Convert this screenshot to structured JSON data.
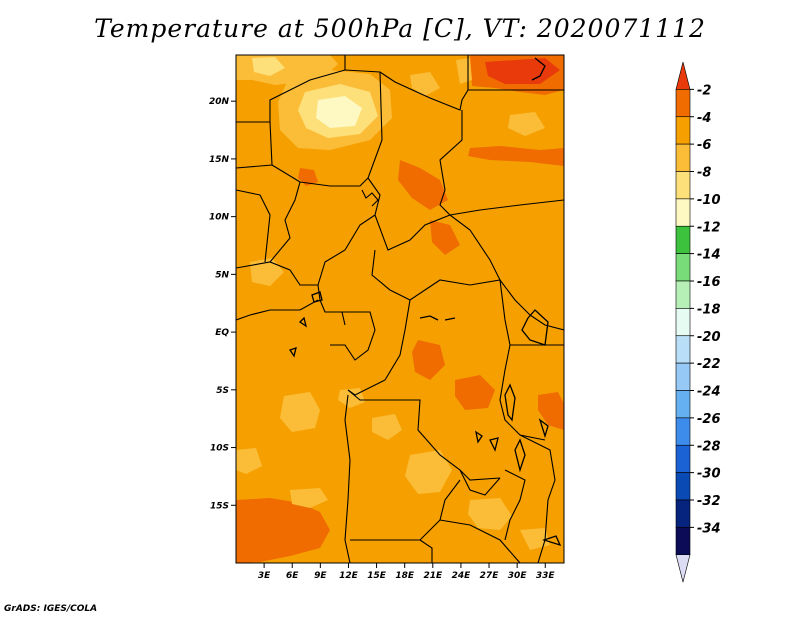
{
  "title": "Temperature at 500hPa [C], VT: 2020071112",
  "credit": "GrADS: IGES/COLA",
  "map": {
    "lon_range": [
      0,
      35
    ],
    "lat_range": [
      -20,
      24
    ],
    "lon_ticks": [
      {
        "value": 3,
        "label": "3E"
      },
      {
        "value": 6,
        "label": "6E"
      },
      {
        "value": 9,
        "label": "9E"
      },
      {
        "value": 12,
        "label": "12E"
      },
      {
        "value": 15,
        "label": "15E"
      },
      {
        "value": 18,
        "label": "18E"
      },
      {
        "value": 21,
        "label": "21E"
      },
      {
        "value": 24,
        "label": "24E"
      },
      {
        "value": 27,
        "label": "27E"
      },
      {
        "value": 30,
        "label": "30E"
      },
      {
        "value": 33,
        "label": "33E"
      }
    ],
    "lat_ticks": [
      {
        "value": 20,
        "label": "20N"
      },
      {
        "value": 15,
        "label": "15N"
      },
      {
        "value": 10,
        "label": "10N"
      },
      {
        "value": 5,
        "label": "5N"
      },
      {
        "value": 0,
        "label": "EQ"
      },
      {
        "value": -5,
        "label": "5S"
      },
      {
        "value": -10,
        "label": "10S"
      },
      {
        "value": -15,
        "label": "15S"
      }
    ]
  },
  "colorbar": {
    "labels": [
      "-2",
      "-4",
      "-6",
      "-8",
      "-10",
      "-12",
      "-14",
      "-16",
      "-18",
      "-20",
      "-22",
      "-24",
      "-26",
      "-28",
      "-30",
      "-32",
      "-34"
    ],
    "colors": [
      "#e83a0a",
      "#f06b00",
      "#f5a000",
      "#fbbd38",
      "#fde07a",
      "#fef9c2",
      "#3cc23c",
      "#78dc78",
      "#b7f0b7",
      "#e6fcf2",
      "#b9def7",
      "#96c9f5",
      "#64b0f0",
      "#3d8ceb",
      "#1b63d5",
      "#0a4ab4",
      "#06237e",
      "#0b0b58",
      "#dcdcf5"
    ]
  }
}
